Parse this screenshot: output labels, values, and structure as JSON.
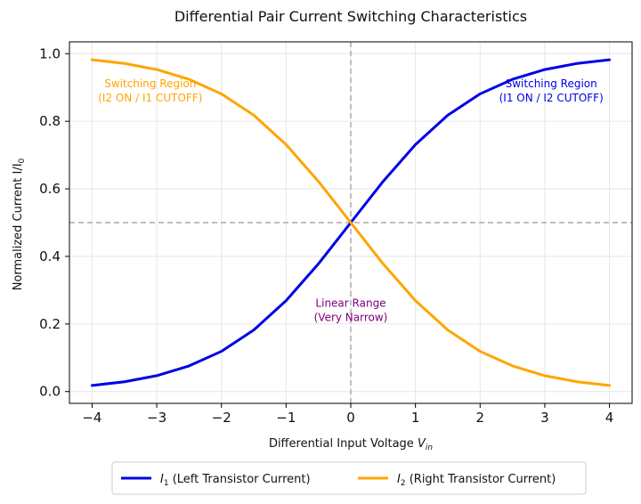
{
  "chart_data": {
    "type": "line",
    "title": "Differential Pair Current Switching Characteristics",
    "xlabel": "Differential Input Voltage",
    "xlabel_sub": "in",
    "xlabel_var": "V",
    "ylabel": "Normalized Current I/I",
    "ylabel_sub": "0",
    "xlim": [
      -4.35,
      4.35
    ],
    "ylim": [
      -0.035,
      1.035
    ],
    "x_ticks": [
      -4,
      -3,
      -2,
      -1,
      0,
      1,
      2,
      3,
      4
    ],
    "x_tick_labels": [
      "−4",
      "−3",
      "−2",
      "−1",
      "0",
      "1",
      "2",
      "3",
      "4"
    ],
    "y_ticks": [
      0.0,
      0.2,
      0.4,
      0.6,
      0.8,
      1.0
    ],
    "y_tick_labels": [
      "0.0",
      "0.2",
      "0.4",
      "0.6",
      "0.8",
      "1.0"
    ],
    "grid": true,
    "reference_lines": {
      "x": 0,
      "y": 0.5,
      "style": "dashed",
      "color": "#aaaaaa"
    },
    "x": [
      -4,
      -3.5,
      -3,
      -2.5,
      -2,
      -1.5,
      -1,
      -0.5,
      0,
      0.5,
      1,
      1.5,
      2,
      2.5,
      3,
      3.5,
      4
    ],
    "series": [
      {
        "name": "(Left Transistor Current)",
        "symbol": "I",
        "symbol_sub": "1",
        "color": "#0000e6",
        "values": [
          0.018,
          0.029,
          0.047,
          0.076,
          0.119,
          0.182,
          0.269,
          0.378,
          0.5,
          0.622,
          0.731,
          0.818,
          0.881,
          0.924,
          0.953,
          0.971,
          0.982
        ]
      },
      {
        "name": "(Right Transistor Current)",
        "symbol": "I",
        "symbol_sub": "2",
        "color": "#ffa500",
        "values": [
          0.982,
          0.971,
          0.953,
          0.924,
          0.881,
          0.818,
          0.731,
          0.622,
          0.5,
          0.378,
          0.269,
          0.182,
          0.119,
          0.076,
          0.047,
          0.029,
          0.018
        ]
      }
    ],
    "annotations": [
      {
        "line1": "Switching Region",
        "line2": "(I2 ON / I1 CUTOFF)",
        "color": "#ffa500",
        "x": -3.1,
        "y": 0.89
      },
      {
        "line1": "Switching Region",
        "line2": "(I1 ON / I2 CUTOFF)",
        "color": "#0000e6",
        "x": 3.1,
        "y": 0.89
      },
      {
        "line1": "Linear Range",
        "line2": "(Very Narrow)",
        "color": "#800080",
        "x": 0,
        "y": 0.24
      }
    ],
    "legend": "bottom-center"
  }
}
